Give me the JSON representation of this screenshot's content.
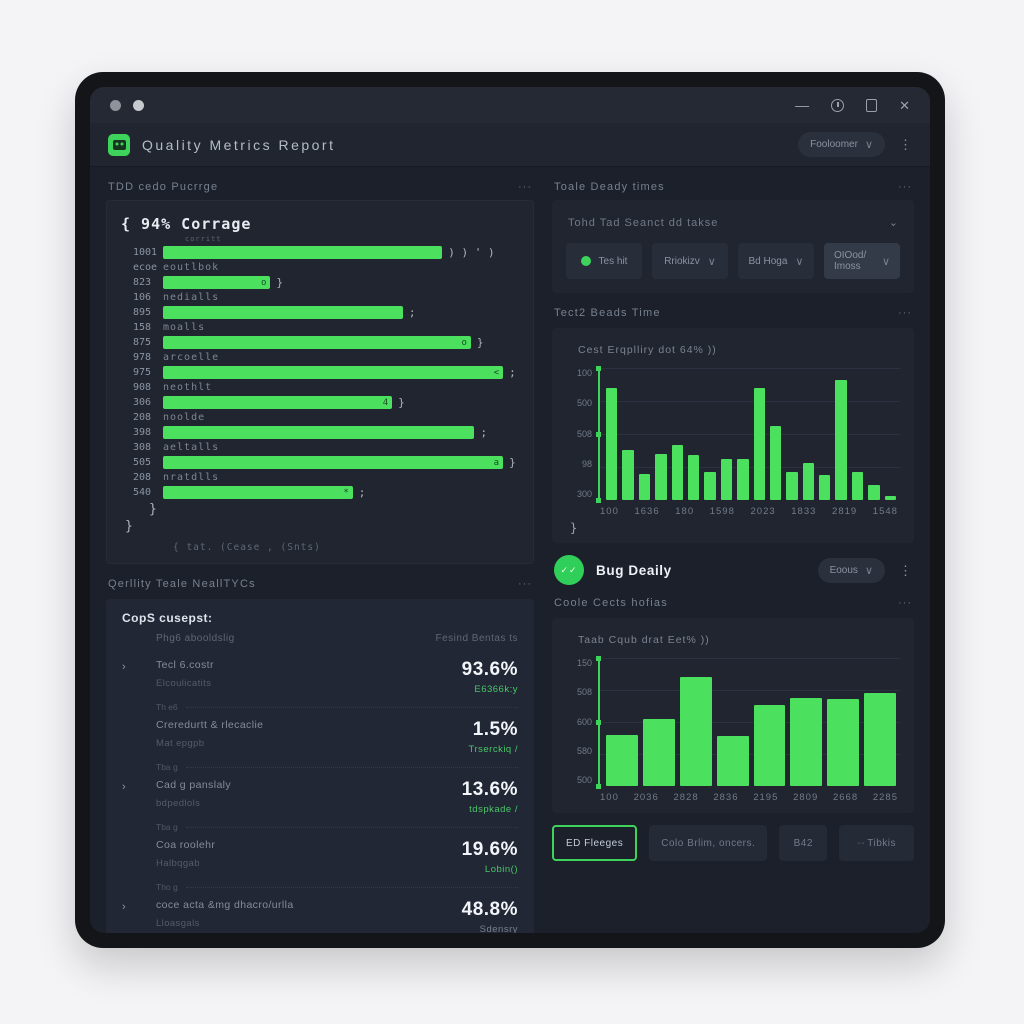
{
  "icons": {
    "kebab": "⋮",
    "ellipsis": "···",
    "chevron_down": "∨",
    "chevron_small": "⌄",
    "arrow": "›"
  },
  "colors": {
    "accent_green": "#3ed45c",
    "bar_green": "#4ce05f",
    "window_bg": "#131519",
    "app_bg": "#1b202b",
    "card_bg": "#20252f"
  },
  "window": {
    "title": "Quality Metrics Report",
    "dropdown_label": "Fooloomer",
    "minimize_glyph": "—",
    "close_glyph": "✕"
  },
  "left": {
    "coverage": {
      "section_title": "TDD cedo Pucrrge",
      "heading": "{  94% Corrage",
      "tiny_label": "corritt",
      "rows": [
        {
          "type": "bar",
          "num": "1001",
          "pct": 78,
          "inner": "",
          "suffix": ") ) ' )"
        },
        {
          "type": "label",
          "num": "ecoe",
          "text": "eoutlbok"
        },
        {
          "type": "bar",
          "num": "823",
          "pct": 30,
          "inner": "o",
          "suffix": "}"
        },
        {
          "type": "label",
          "num": "106",
          "text": "nedialls"
        },
        {
          "type": "bar",
          "num": "895",
          "pct": 67,
          "inner": "",
          "suffix": ";"
        },
        {
          "type": "label",
          "num": "158",
          "text": "moalls"
        },
        {
          "type": "bar",
          "num": "875",
          "pct": 86,
          "inner": "o",
          "suffix": "}"
        },
        {
          "type": "label",
          "num": "978",
          "text": "arcoelle"
        },
        {
          "type": "bar",
          "num": "975",
          "pct": 95,
          "inner": "<",
          "suffix": ";"
        },
        {
          "type": "label",
          "num": "908",
          "text": "neothlt"
        },
        {
          "type": "bar",
          "num": "306",
          "pct": 64,
          "inner": "4",
          "suffix": "}"
        },
        {
          "type": "label",
          "num": "208",
          "text": "noolde"
        },
        {
          "type": "bar",
          "num": "398",
          "pct": 87,
          "inner": "",
          "suffix": ";"
        },
        {
          "type": "label",
          "num": "308",
          "text": "aeltalls"
        },
        {
          "type": "bar",
          "num": "505",
          "pct": 95,
          "inner": "a",
          "suffix": "}"
        },
        {
          "type": "label",
          "num": "208",
          "text": "nratdlls"
        },
        {
          "type": "bar",
          "num": "540",
          "pct": 53,
          "inner": "*",
          "suffix": ";"
        }
      ],
      "closer_inner": "}",
      "closer_outer": "}",
      "footer": "{   tat. (Cease , (Snts)"
    },
    "metrics": {
      "section_title": "Qerllity Teale NeallTYCs",
      "card_title": "CopS cusepst:",
      "card_sub": "Phg6 abooldslig",
      "card_sub_right": "Fesind Bentas  ts",
      "items": [
        {
          "arrow": "›",
          "label": "Tecl 6.costr",
          "sublabel": "Elcoulicatits",
          "value": "93.6%",
          "value_sub": "E6366k:y",
          "sub_color": "green"
        },
        {
          "arrow": "",
          "label": "Creredurtt & rlecaclie",
          "sublabel": "Mat epgpb",
          "value": "1.5%",
          "value_sub": "Trserckiq /",
          "sub_color": "green"
        },
        {
          "arrow": "›",
          "label": "Cad g panslaly",
          "sublabel": "bdpedlols",
          "value": "13.6%",
          "value_sub": "tdspkade /",
          "sub_color": "green"
        },
        {
          "arrow": "",
          "label": "Coa roolehr",
          "sublabel": "Halbqgab",
          "value": "19.6%",
          "value_sub": "Lobin()",
          "sub_color": "green"
        },
        {
          "arrow": "›",
          "label": "coce acta &mg dhacro/urlla",
          "sublabel": "Lloasgals",
          "value": "48.8%",
          "value_sub": "Sdensry",
          "sub_color": "gray"
        }
      ],
      "dividers": [
        "Th e6",
        "Tba g",
        "Tba g",
        "Tho g"
      ]
    }
  },
  "right": {
    "filters": {
      "section_title": "Toale Deady times",
      "card_label": "Tohd Tad Seanct dd takse",
      "buttons": [
        {
          "label": "Tes hit",
          "dot": true,
          "chevron": false,
          "light": false
        },
        {
          "label": "Rriokizv",
          "dot": false,
          "chevron": true,
          "light": false
        },
        {
          "label": "Bd Hoga",
          "dot": false,
          "chevron": true,
          "light": false
        },
        {
          "label": "OIOod/ Imoss",
          "dot": false,
          "chevron": true,
          "light": true
        }
      ]
    },
    "bug": {
      "title": "Bug Deaily",
      "pill_label": "Eoous",
      "avatar_glyph": "✓✓"
    },
    "chart2_section_title": "Coole Cects hofias",
    "footer_buttons": [
      {
        "label": "ED Fleeges",
        "outlined": true,
        "dash": ""
      },
      {
        "label": "Colo Brlim, oncers.",
        "outlined": false,
        "dash": ""
      },
      {
        "label": "B42",
        "outlined": false,
        "dash": ""
      },
      {
        "label": "Tibkis",
        "outlined": false,
        "dash": "--"
      }
    ]
  },
  "chart_data": [
    {
      "type": "bar",
      "title": "Tect2 Beads Time",
      "subtitle": "Cest Erqplliry dot 64% ))",
      "y_tick_labels": [
        "100",
        "500",
        "508",
        "98",
        "300"
      ],
      "x_tick_labels": [
        "100",
        "1636",
        "180",
        "1598",
        "2023",
        "1833",
        "2819",
        "1548"
      ],
      "values": [
        85,
        38,
        20,
        35,
        42,
        34,
        21,
        31,
        31,
        85,
        56,
        21,
        28,
        19,
        91,
        21,
        11,
        3
      ],
      "ylim": [
        0,
        100
      ],
      "grid": true,
      "footer_glyph": "}",
      "bar_color": "#4ce05f"
    },
    {
      "type": "bar",
      "title": "Coole Cects hofias",
      "subtitle": "Taab Cqub drat Eet% ))",
      "y_tick_labels": [
        "150",
        "508",
        "600",
        "580",
        "500"
      ],
      "x_tick_labels": [
        "100",
        "2036",
        "2828",
        "2836",
        "2195",
        "2809",
        "2668",
        "2285"
      ],
      "values": [
        40,
        52,
        85,
        39,
        63,
        69,
        68,
        73
      ],
      "ylim": [
        0,
        100
      ],
      "grid": true,
      "footer_glyph": "",
      "bar_color": "#4ce05f"
    }
  ]
}
